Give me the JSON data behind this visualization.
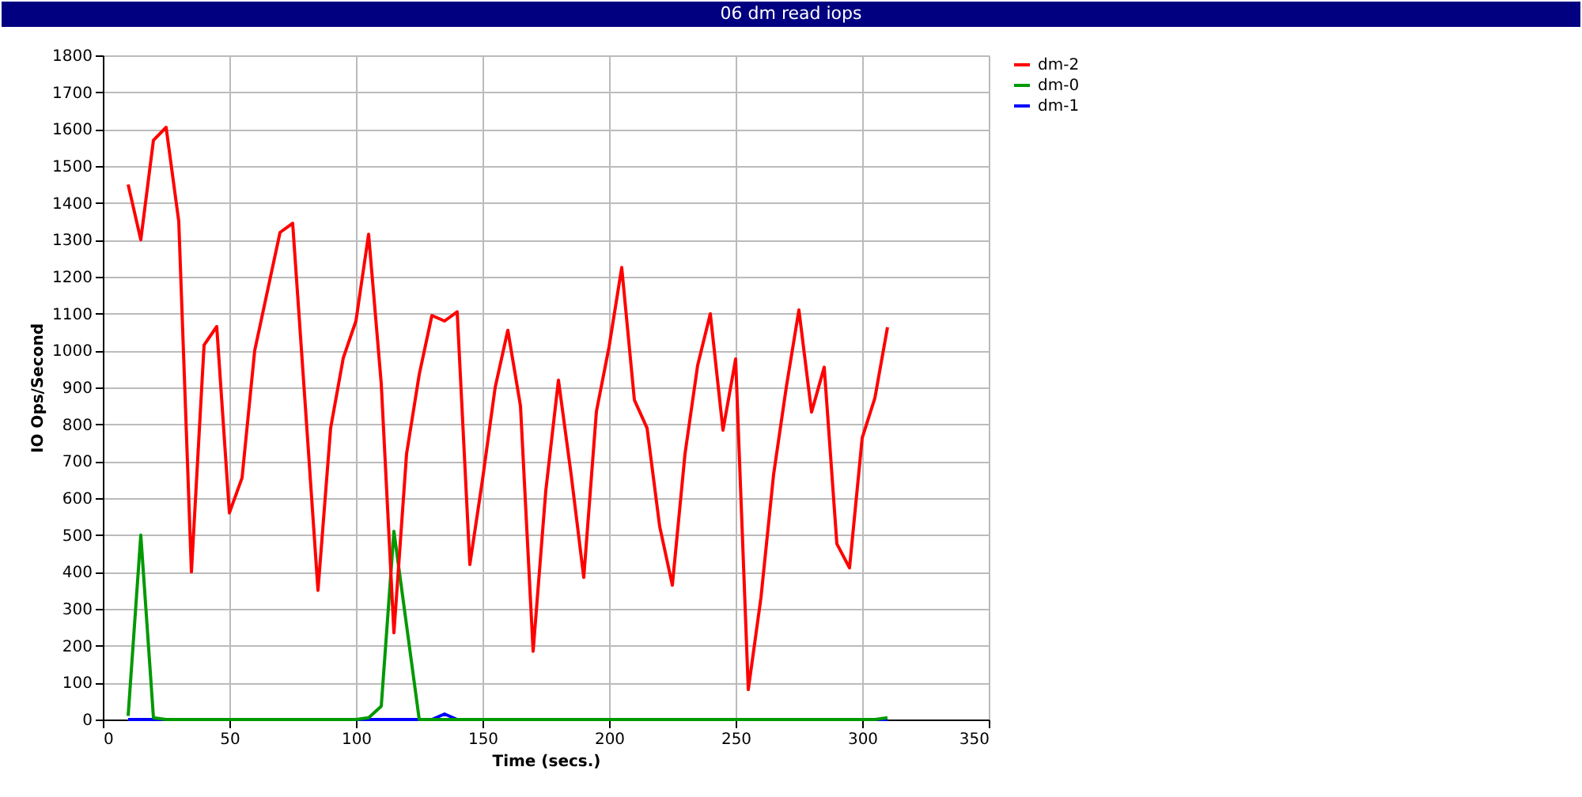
{
  "chart_data": {
    "type": "line",
    "title": "06 dm read iops",
    "xlabel": "Time (secs.)",
    "ylabel": "IO Ops/Second",
    "x": [
      10,
      15,
      20,
      25,
      30,
      35,
      40,
      45,
      50,
      55,
      60,
      65,
      70,
      75,
      80,
      85,
      90,
      95,
      100,
      105,
      110,
      115,
      120,
      125,
      130,
      135,
      140,
      145,
      150,
      155,
      160,
      165,
      170,
      175,
      180,
      185,
      190,
      195,
      200,
      205,
      210,
      215,
      220,
      225,
      230,
      235,
      240,
      245,
      250,
      255,
      260,
      265,
      270,
      275,
      280,
      285,
      290,
      295,
      300,
      305,
      310
    ],
    "series": [
      {
        "name": "dm-2",
        "color": "#ff0000",
        "values": [
          1450,
          1300,
          1570,
          1605,
          1350,
          400,
          1015,
          1065,
          560,
          655,
          1000,
          1160,
          1320,
          1345,
          850,
          350,
          790,
          980,
          1080,
          1315,
          910,
          235,
          720,
          935,
          1095,
          1080,
          1105,
          420,
          650,
          900,
          1055,
          850,
          185,
          620,
          920,
          665,
          385,
          835,
          1010,
          1225,
          866,
          790,
          523,
          364,
          720,
          960,
          1100,
          784,
          977,
          81,
          330,
          664,
          900,
          1110,
          833,
          955,
          476,
          411,
          763,
          871,
          1063
        ]
      },
      {
        "name": "dm-0",
        "color": "#009900",
        "values": [
          10,
          500,
          5,
          0,
          0,
          0,
          0,
          0,
          0,
          0,
          0,
          0,
          0,
          0,
          0,
          0,
          0,
          0,
          0,
          5,
          36,
          510,
          255,
          0,
          0,
          0,
          0,
          0,
          0,
          0,
          0,
          0,
          0,
          0,
          0,
          0,
          0,
          0,
          0,
          0,
          0,
          0,
          0,
          0,
          0,
          0,
          0,
          0,
          0,
          0,
          0,
          0,
          0,
          0,
          0,
          0,
          0,
          0,
          0,
          0,
          5
        ]
      },
      {
        "name": "dm-1",
        "color": "#0000ff",
        "values": [
          0,
          0,
          0,
          0,
          null,
          null,
          null,
          null,
          null,
          null,
          null,
          null,
          null,
          null,
          null,
          null,
          null,
          null,
          0,
          0,
          0,
          0,
          0,
          0,
          0,
          15,
          0,
          null,
          null,
          null,
          null,
          null,
          null,
          null,
          null,
          null,
          null,
          null,
          null,
          null,
          null,
          null,
          null,
          null,
          null,
          null,
          null,
          null,
          null,
          null,
          null,
          null,
          null,
          null,
          null,
          null,
          null,
          null,
          null,
          0,
          0
        ]
      }
    ],
    "xlim": [
      0,
      350
    ],
    "xticks": [
      0,
      50,
      100,
      150,
      200,
      250,
      300,
      350
    ],
    "ylim": [
      0,
      1800
    ],
    "yticks": [
      0,
      100,
      200,
      300,
      400,
      500,
      600,
      700,
      800,
      900,
      1000,
      1100,
      1200,
      1300,
      1400,
      1500,
      1600,
      1700,
      1800
    ],
    "grid": true,
    "legend": "right",
    "marker": "none",
    "line_style": "solid"
  }
}
